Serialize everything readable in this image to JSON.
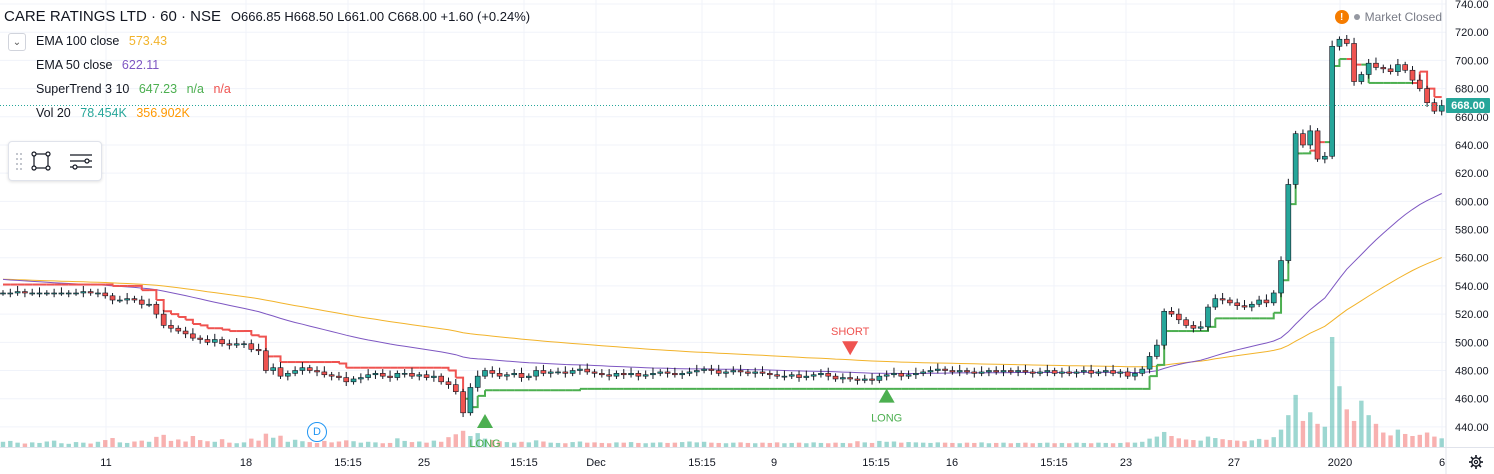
{
  "header": {
    "symbol": "CARE RATINGS LTD · 60 · NSE",
    "ohlc": "O666.85  H668.50  L661.00  C668.00  +1.60 (+0.24%)"
  },
  "indicators": [
    {
      "label": "EMA 100 close",
      "values": [
        "573.43"
      ],
      "value_colors": [
        "#f2b32a"
      ]
    },
    {
      "label": "EMA 50 close",
      "values": [
        "622.11"
      ],
      "value_colors": [
        "#7e57c2"
      ]
    },
    {
      "label": "SuperTrend 3 10",
      "values": [
        "647.23",
        "n/a",
        "n/a"
      ],
      "value_colors": [
        "#4caf50",
        "#4caf50",
        "#ef5350"
      ]
    },
    {
      "label": "Vol 20",
      "values": [
        "78.454K",
        "356.902K"
      ],
      "value_colors": [
        "#26a69a",
        "#ff9800"
      ]
    }
  ],
  "status": {
    "warning_icon": "!",
    "text": "Market Closed"
  },
  "current_price_label": "668.00",
  "event_marker": "D",
  "colors": {
    "up": "#26a69a",
    "down": "#ef5350",
    "ema100": "#f2b32a",
    "ema50": "#7e57c2",
    "st_up": "#4caf50",
    "st_down": "#ef5350",
    "last_price_line": "#26a69a"
  },
  "chart_data": {
    "type": "candlestick",
    "ylim": [
      430,
      740
    ],
    "y_ticks": [
      440,
      460,
      480,
      500,
      520,
      540,
      560,
      580,
      600,
      620,
      640,
      660,
      680,
      700,
      720,
      740
    ],
    "x_ticks": [
      "11",
      "18",
      "15:15",
      "25",
      "15:15",
      "Dec",
      "15:15",
      "9",
      "15:15",
      "16",
      "15:15",
      "23",
      "27",
      "2020",
      "6"
    ],
    "last_price": 668,
    "signals": [
      {
        "type": "LONG",
        "bar": 66,
        "price": 452
      },
      {
        "type": "SHORT",
        "bar": 116,
        "price": 488
      },
      {
        "type": "LONG",
        "bar": 121,
        "price": 470
      }
    ],
    "close": [
      535,
      535,
      536,
      535,
      535,
      535,
      535,
      535,
      535,
      535,
      535,
      536,
      535,
      535,
      533,
      530,
      530,
      531,
      530,
      527,
      527,
      520,
      512,
      510,
      508,
      506,
      503,
      502,
      500,
      502,
      499,
      498,
      499,
      499,
      495,
      494,
      480,
      482,
      476,
      478,
      480,
      482,
      480,
      479,
      477,
      476,
      475,
      472,
      474,
      475,
      477,
      478,
      476,
      475,
      478,
      478,
      476,
      477,
      475,
      476,
      472,
      470,
      465,
      450,
      468,
      476,
      480,
      478,
      476,
      477,
      478,
      475,
      476,
      480,
      478,
      479,
      479,
      478,
      480,
      481,
      479,
      478,
      477,
      476,
      478,
      477,
      478,
      476,
      477,
      478,
      479,
      478,
      477,
      478,
      479,
      480,
      481,
      480,
      478,
      479,
      480,
      479,
      478,
      479,
      478,
      477,
      476,
      476,
      477,
      475,
      476,
      477,
      478,
      476,
      474,
      475,
      474,
      473,
      474,
      473,
      476,
      477,
      478,
      476,
      477,
      478,
      479,
      480,
      481,
      480,
      479,
      480,
      479,
      478,
      479,
      480,
      479,
      480,
      479,
      480,
      479,
      478,
      479,
      480,
      478,
      479,
      478,
      479,
      480,
      478,
      479,
      480,
      478,
      479,
      476,
      478,
      481,
      490,
      498,
      522,
      520,
      516,
      512,
      510,
      511,
      525,
      531,
      530,
      528,
      526,
      525,
      527,
      530,
      528,
      535,
      558,
      612,
      648,
      640,
      650,
      630,
      632,
      710,
      715,
      712,
      685,
      690,
      698,
      695,
      694,
      692,
      697,
      693,
      686,
      680,
      670,
      664,
      668
    ],
    "volume": [
      1.8,
      2.1,
      1.5,
      1.2,
      1.6,
      1.4,
      1.9,
      2.2,
      1.3,
      1.1,
      1.7,
      1.5,
      1.2,
      1.8,
      2.4,
      3.1,
      1.6,
      1.4,
      1.9,
      2.2,
      1.8,
      3.5,
      4.2,
      2.1,
      2.6,
      1.9,
      3.8,
      2.4,
      2.0,
      1.8,
      2.7,
      1.5,
      1.3,
      1.6,
      2.9,
      2.2,
      4.6,
      3.2,
      3.9,
      1.8,
      2.5,
      2.0,
      1.7,
      1.4,
      2.1,
      1.6,
      1.9,
      2.3,
      2.0,
      1.5,
      1.8,
      1.6,
      1.3,
      1.4,
      3.0,
      2.1,
      1.7,
      1.9,
      1.5,
      2.2,
      1.8,
      3.4,
      4.4,
      5.6,
      3.8,
      4.8,
      2.9,
      2.4,
      2.0,
      1.7,
      1.5,
      1.8,
      1.6,
      2.3,
      1.9,
      1.5,
      1.4,
      1.3,
      1.7,
      1.9,
      1.5,
      1.6,
      1.4,
      1.3,
      1.6,
      1.5,
      1.7,
      1.4,
      1.3,
      1.5,
      1.6,
      1.4,
      1.5,
      1.7,
      1.9,
      1.6,
      1.8,
      1.5,
      1.4,
      1.3,
      1.5,
      1.6,
      1.4,
      1.3,
      1.5,
      1.4,
      1.6,
      1.3,
      1.4,
      1.5,
      1.3,
      1.6,
      1.4,
      1.3,
      1.5,
      1.4,
      1.3,
      2.0,
      1.6,
      1.4,
      2.1,
      1.8,
      1.9,
      1.5,
      1.7,
      1.6,
      1.5,
      1.4,
      1.6,
      1.5,
      1.4,
      1.3,
      1.5,
      1.4,
      1.6,
      1.3,
      1.4,
      1.5,
      1.3,
      1.4,
      1.5,
      1.3,
      1.4,
      1.5,
      1.3,
      1.4,
      1.3,
      1.5,
      1.4,
      1.3,
      1.5,
      1.4,
      1.3,
      1.4,
      1.6,
      1.5,
      1.8,
      2.9,
      3.6,
      5.2,
      3.8,
      3.0,
      2.6,
      2.4,
      2.2,
      3.6,
      3.1,
      2.7,
      2.4,
      2.2,
      2.0,
      2.3,
      2.8,
      2.5,
      3.4,
      6.0,
      11.0,
      18.0,
      9.0,
      12.0,
      8.0,
      7.0,
      38.0,
      21.0,
      13.0,
      9.0,
      16.0,
      11.0,
      8.0,
      5.0,
      4.0,
      6.0,
      4.5,
      3.8,
      4.2,
      5.0,
      3.6,
      3.0
    ]
  }
}
